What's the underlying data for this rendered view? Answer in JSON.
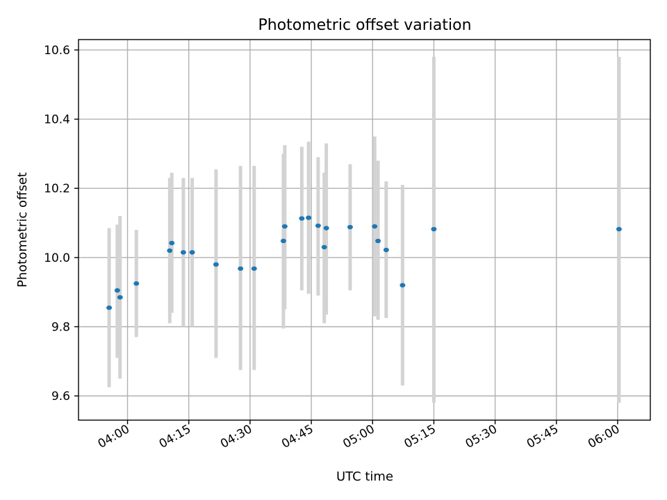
{
  "chart_data": {
    "type": "scatter",
    "title": "Photometric offset variation",
    "xlabel": "UTC time",
    "ylabel": "Photometric offset",
    "x_axis_type": "time",
    "xlim": [
      "03:48",
      "06:08"
    ],
    "ylim": [
      9.53,
      10.63
    ],
    "xticks": [
      "04:00",
      "04:15",
      "04:30",
      "04:45",
      "05:00",
      "05:15",
      "05:30",
      "05:45",
      "06:00"
    ],
    "yticks": [
      "9.6",
      "9.8",
      "10.0",
      "10.2",
      "10.4",
      "10.6"
    ],
    "grid": true,
    "marker_color": "#1f77b4",
    "errorbar_color": "#d3d3d3",
    "points": [
      {
        "x": "03:55:30",
        "y": 9.855,
        "ylow": 9.625,
        "yhigh": 10.085
      },
      {
        "x": "03:57:30",
        "y": 9.905,
        "ylow": 9.71,
        "yhigh": 10.095
      },
      {
        "x": "03:58:10",
        "y": 9.885,
        "ylow": 9.65,
        "yhigh": 10.12
      },
      {
        "x": "04:02:10",
        "y": 9.925,
        "ylow": 9.77,
        "yhigh": 10.08
      },
      {
        "x": "04:10:20",
        "y": 10.02,
        "ylow": 9.81,
        "yhigh": 10.23
      },
      {
        "x": "04:10:50",
        "y": 10.042,
        "ylow": 9.84,
        "yhigh": 10.245
      },
      {
        "x": "04:13:40",
        "y": 10.015,
        "ylow": 9.8,
        "yhigh": 10.23
      },
      {
        "x": "04:15:50",
        "y": 10.015,
        "ylow": 9.8,
        "yhigh": 10.23
      },
      {
        "x": "04:21:40",
        "y": 9.98,
        "ylow": 9.71,
        "yhigh": 10.255
      },
      {
        "x": "04:27:40",
        "y": 9.968,
        "ylow": 9.675,
        "yhigh": 10.265
      },
      {
        "x": "04:31:00",
        "y": 9.968,
        "ylow": 9.675,
        "yhigh": 10.265
      },
      {
        "x": "04:38:10",
        "y": 10.048,
        "ylow": 9.795,
        "yhigh": 10.3
      },
      {
        "x": "04:38:30",
        "y": 10.09,
        "ylow": 9.85,
        "yhigh": 10.325
      },
      {
        "x": "04:42:40",
        "y": 10.113,
        "ylow": 9.905,
        "yhigh": 10.32
      },
      {
        "x": "04:44:20",
        "y": 10.115,
        "ylow": 9.895,
        "yhigh": 10.335
      },
      {
        "x": "04:46:40",
        "y": 10.092,
        "ylow": 9.89,
        "yhigh": 10.29
      },
      {
        "x": "04:48:10",
        "y": 10.03,
        "ylow": 9.81,
        "yhigh": 10.245
      },
      {
        "x": "04:48:40",
        "y": 10.085,
        "ylow": 9.835,
        "yhigh": 10.33
      },
      {
        "x": "04:54:30",
        "y": 10.088,
        "ylow": 9.905,
        "yhigh": 10.27
      },
      {
        "x": "05:00:30",
        "y": 10.09,
        "ylow": 9.83,
        "yhigh": 10.35
      },
      {
        "x": "05:01:20",
        "y": 10.048,
        "ylow": 9.82,
        "yhigh": 10.28
      },
      {
        "x": "05:03:20",
        "y": 10.022,
        "ylow": 9.825,
        "yhigh": 10.22
      },
      {
        "x": "05:07:20",
        "y": 9.92,
        "ylow": 9.63,
        "yhigh": 10.21
      },
      {
        "x": "05:15:00",
        "y": 10.082,
        "ylow": 9.58,
        "yhigh": 10.58
      },
      {
        "x": "06:00:20",
        "y": 10.082,
        "ylow": 9.58,
        "yhigh": 10.58
      }
    ]
  }
}
